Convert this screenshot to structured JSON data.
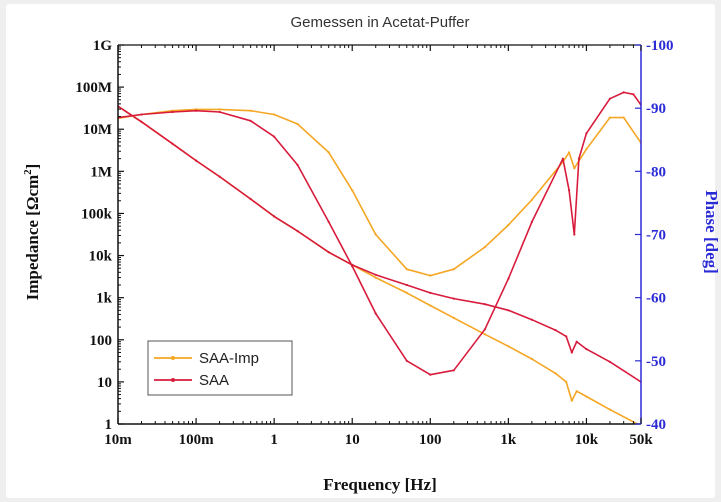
{
  "chart_data": {
    "type": "line",
    "title": "Gemessen in Acetat-Puffer",
    "xlabel": "Frequency [Hz]",
    "ylabel_left_main": "Impedance [Ωcm",
    "ylabel_left_sup": "2",
    "ylabel_left_end": "]",
    "ylabel_right": "Phase [deg]",
    "x_scale": "log",
    "xlim": [
      0.01,
      50000
    ],
    "x_ticks": [
      {
        "v": 0.01,
        "label": "10m"
      },
      {
        "v": 0.1,
        "label": "100m"
      },
      {
        "v": 1,
        "label": "1"
      },
      {
        "v": 10,
        "label": "10"
      },
      {
        "v": 100,
        "label": "100"
      },
      {
        "v": 1000,
        "label": "1k"
      },
      {
        "v": 10000,
        "label": "10k"
      },
      {
        "v": 50000,
        "label": "50k"
      }
    ],
    "y_left_scale": "log",
    "y_left_lim": [
      1,
      1000000000
    ],
    "y_left_ticks": [
      {
        "v": 1,
        "label": "1"
      },
      {
        "v": 10,
        "label": "10"
      },
      {
        "v": 100,
        "label": "100"
      },
      {
        "v": 1000,
        "label": "1k"
      },
      {
        "v": 10000,
        "label": "10k"
      },
      {
        "v": 100000,
        "label": "100k"
      },
      {
        "v": 1000000,
        "label": "1M"
      },
      {
        "v": 10000000,
        "label": "10M"
      },
      {
        "v": 100000000,
        "label": "100M"
      },
      {
        "v": 1000000000,
        "label": "1G"
      }
    ],
    "y_right_lim": [
      -40,
      -100
    ],
    "y_right_ticks": [
      {
        "v": -100,
        "label": "-100"
      },
      {
        "v": -90,
        "label": "-90"
      },
      {
        "v": -80,
        "label": "-80"
      },
      {
        "v": -70,
        "label": "-70"
      },
      {
        "v": -60,
        "label": "-60"
      },
      {
        "v": -50,
        "label": "-50"
      },
      {
        "v": -40,
        "label": "-40"
      }
    ],
    "grid": false,
    "legend_position": "bottom-left",
    "series": [
      {
        "name": "SAA-Imp",
        "quantity": "impedance",
        "axis": "left",
        "color": "#f5a623",
        "x": [
          0.01,
          0.02,
          0.05,
          0.1,
          0.2,
          0.5,
          1,
          2,
          5,
          10,
          20,
          50,
          100,
          200,
          500,
          1000,
          2000,
          4000,
          5500,
          6500,
          7500,
          10000,
          20000,
          50000
        ],
        "y": [
          35000000,
          15000000,
          4500000,
          1800000,
          750000,
          220000,
          85000,
          38000,
          12000,
          6000,
          3000,
          1300,
          650,
          330,
          135,
          70,
          35,
          16,
          10,
          3.6,
          6,
          4.5,
          2.2,
          0.9
        ]
      },
      {
        "name": "SAA",
        "quantity": "impedance",
        "axis": "left",
        "color": "#d81b3c",
        "x": [
          0.01,
          0.02,
          0.05,
          0.1,
          0.2,
          0.5,
          1,
          2,
          5,
          10,
          20,
          50,
          100,
          200,
          500,
          1000,
          2000,
          4000,
          5500,
          6500,
          7500,
          10000,
          20000,
          50000
        ],
        "y": [
          35000000,
          15000000,
          4500000,
          1800000,
          750000,
          220000,
          85000,
          38000,
          12000,
          6000,
          3500,
          2000,
          1300,
          950,
          700,
          500,
          300,
          170,
          120,
          50,
          90,
          60,
          30,
          10
        ]
      },
      {
        "name": "SAA-Imp",
        "quantity": "phase",
        "axis": "right",
        "color": "#f5a623",
        "x": [
          0.01,
          0.02,
          0.05,
          0.1,
          0.2,
          0.5,
          1,
          2,
          5,
          10,
          20,
          50,
          100,
          200,
          500,
          1000,
          2000,
          5000,
          6000,
          7000,
          10000,
          20000,
          30000,
          50000
        ],
        "y": [
          -88.4,
          -89,
          -89.6,
          -89.8,
          -89.8,
          -89.6,
          -89,
          -87.5,
          -83,
          -77,
          -70,
          -64.5,
          -63.5,
          -64.5,
          -68,
          -71.5,
          -75.5,
          -81.5,
          -83,
          -80.5,
          -83.5,
          -88.5,
          -88.5,
          -84.5
        ]
      },
      {
        "name": "SAA",
        "quantity": "phase",
        "axis": "right",
        "color": "#d81b3c",
        "x": [
          0.01,
          0.02,
          0.05,
          0.1,
          0.2,
          0.5,
          1,
          2,
          5,
          10,
          20,
          50,
          100,
          200,
          500,
          1000,
          2000,
          5000,
          6000,
          7000,
          8000,
          10000,
          20000,
          30000,
          40000,
          50000
        ],
        "y": [
          -88.5,
          -89,
          -89.4,
          -89.6,
          -89.4,
          -88,
          -85.5,
          -81,
          -72,
          -65,
          -57.5,
          -50,
          -47.8,
          -48.5,
          -55,
          -63,
          -72,
          -82,
          -77,
          -70,
          -82,
          -86,
          -91.5,
          -92.5,
          -92.2,
          -90.5
        ]
      }
    ]
  }
}
